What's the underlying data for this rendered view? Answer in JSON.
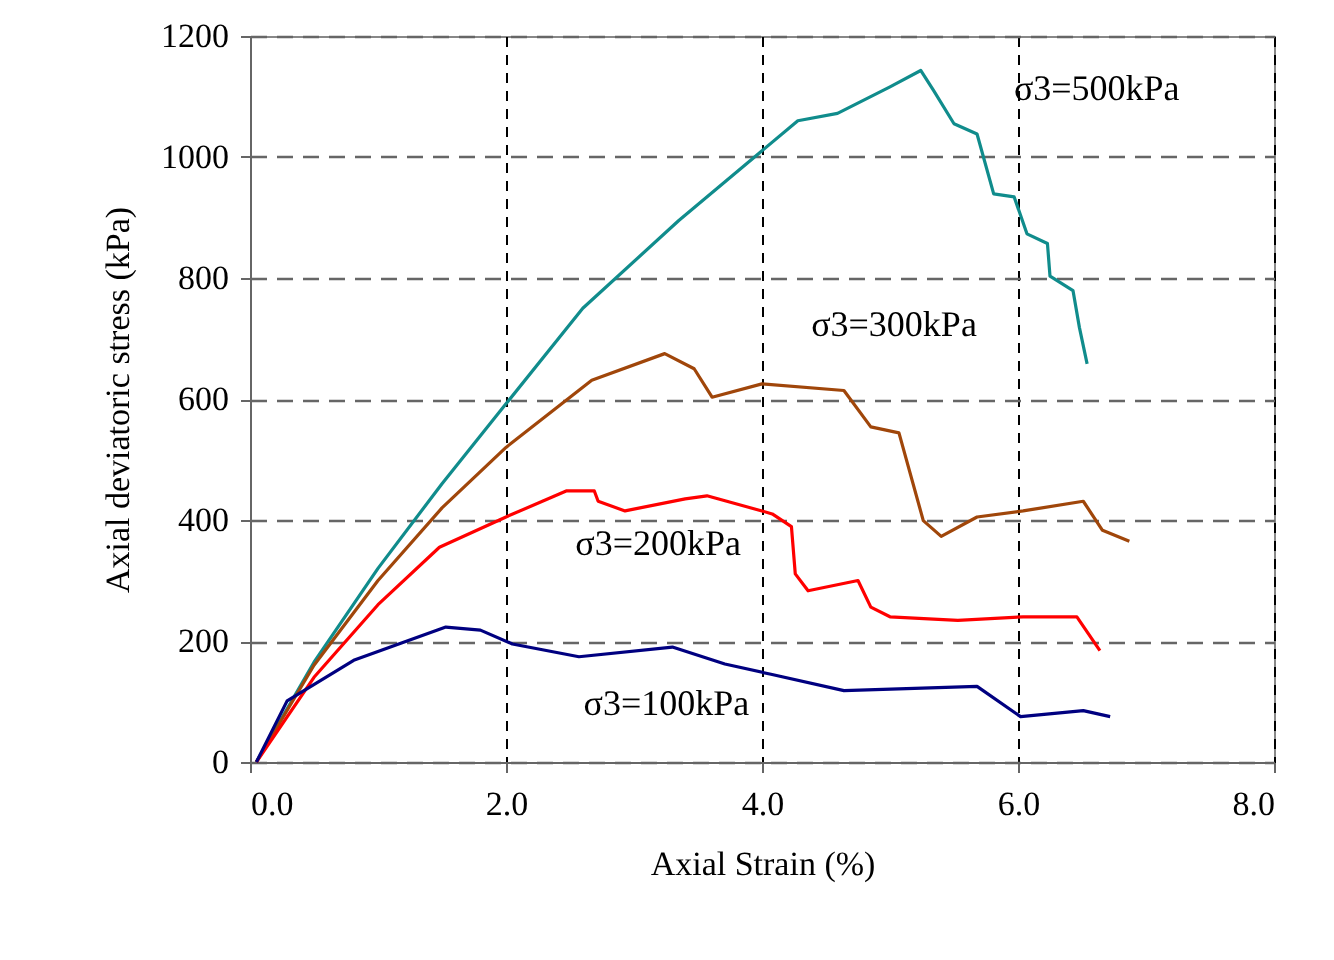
{
  "chart_data": {
    "type": "line",
    "xlabel": "Axial Strain   (%)",
    "ylabel": "Axial deviatoric stress    (kPa)",
    "xlim": [
      0,
      8
    ],
    "xticks": [
      {
        "value": 0,
        "label": "0.0"
      },
      {
        "value": 2,
        "label": "2.0"
      },
      {
        "value": 4,
        "label": "4.0"
      },
      {
        "value": 6,
        "label": "6.0"
      },
      {
        "value": 8,
        "label": "8.0"
      }
    ],
    "ylim": [
      0,
      1200
    ],
    "yticks": [
      0,
      200,
      400,
      600,
      800,
      1000,
      1200
    ],
    "grid": true,
    "marker": "none",
    "line_style": "solid",
    "series": [
      {
        "name": "σ3=500kPa",
        "color": "#108c8c",
        "x": [
          0.05,
          0.5,
          1.0,
          1.5,
          2.0,
          2.6,
          3.35,
          3.97,
          4.28,
          4.59,
          5.0,
          5.24,
          5.34,
          5.5,
          5.68,
          5.81,
          5.97,
          6.07,
          6.23,
          6.25,
          6.43,
          6.48,
          6.54
        ],
        "values": [
          0,
          165,
          320,
          460,
          592,
          750,
          895,
          1005,
          1060,
          1072,
          1116,
          1143,
          1110,
          1055,
          1038,
          939,
          934,
          873,
          857,
          803,
          779,
          718,
          658
        ]
      },
      {
        "name": "σ3=300kPa",
        "color": "#a0460a",
        "x": [
          0.05,
          0.5,
          1.0,
          1.5,
          2.0,
          2.67,
          3.24,
          3.47,
          3.61,
          4.0,
          4.64,
          4.85,
          5.07,
          5.26,
          5.4,
          5.68,
          6.04,
          6.51,
          6.66,
          6.87
        ],
        "values": [
          0,
          160,
          300,
          420,
          520,
          631,
          675,
          650,
          603,
          625,
          614,
          554,
          544,
          399,
          373,
          405,
          415,
          431,
          383,
          365
        ]
      },
      {
        "name": "σ3=200kPa",
        "color": "#ff0000",
        "x": [
          0.05,
          0.5,
          1.0,
          1.48,
          2.0,
          2.47,
          2.69,
          2.72,
          2.93,
          3.4,
          3.57,
          4.0,
          4.08,
          4.23,
          4.26,
          4.36,
          4.75,
          4.85,
          5.0,
          5.53,
          6.04,
          6.46,
          6.64
        ],
        "values": [
          0,
          140,
          260,
          355,
          405,
          448,
          448,
          431,
          415,
          435,
          440,
          415,
          410,
          389,
          311,
          283,
          300,
          256,
          240,
          234,
          240,
          240,
          184
        ]
      },
      {
        "name": "σ3=100kPa",
        "color": "#000080",
        "x": [
          0.05,
          0.29,
          0.81,
          1.53,
          1.8,
          2.05,
          2.57,
          3.3,
          3.71,
          4.07,
          4.64,
          5.68,
          6.02,
          6.51,
          6.72
        ],
        "values": [
          0,
          101,
          168,
          223,
          218,
          195,
          174,
          190,
          162,
          145,
          118,
          125,
          75,
          85,
          75
        ]
      }
    ]
  }
}
